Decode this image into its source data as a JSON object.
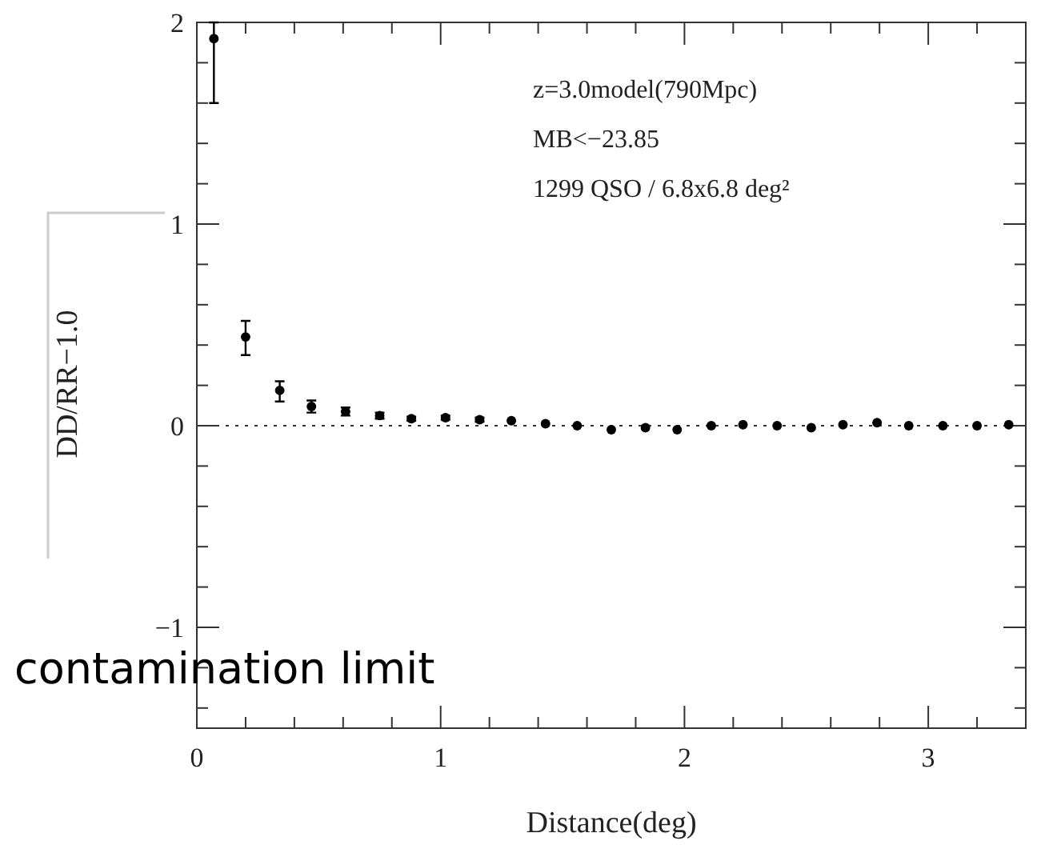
{
  "chart_data": {
    "type": "scatter",
    "xlabel": "Distance(deg)",
    "ylabel": "DD/RR−1.0",
    "x": [
      0.07,
      0.2,
      0.34,
      0.47,
      0.61,
      0.75,
      0.88,
      1.02,
      1.16,
      1.29,
      1.43,
      1.56,
      1.7,
      1.84,
      1.97,
      2.11,
      2.24,
      2.38,
      2.52,
      2.65,
      2.79,
      2.92,
      3.06,
      3.2,
      3.33
    ],
    "series": [
      {
        "color": "#000000",
        "values": [
          1.92,
          0.44,
          0.175,
          0.095,
          0.07,
          0.05,
          0.035,
          0.04,
          0.03,
          0.025,
          0.01,
          0.0,
          -0.02,
          -0.01,
          -0.02,
          0.0,
          0.005,
          0.0,
          -0.01,
          0.005,
          0.015,
          0.0,
          0.0,
          0.0,
          0.005
        ],
        "errors": [
          [
            1.6,
            2.0
          ],
          [
            0.35,
            0.52
          ],
          [
            0.12,
            0.22
          ],
          0.03,
          0.02,
          0.015,
          0.01,
          0.01,
          0.01,
          null,
          null,
          null,
          null,
          null,
          null,
          null,
          null,
          null,
          null,
          null,
          null,
          null,
          null,
          null,
          null
        ]
      }
    ],
    "xlim": [
      0,
      3.4
    ],
    "ylim": [
      -1.5,
      2
    ],
    "xticks": [
      0,
      {
        "value": 0.2,
        "label": null
      },
      {
        "value": 0.4,
        "label": null
      },
      {
        "value": 0.6,
        "label": null
      },
      {
        "value": 0.8,
        "label": null
      },
      1,
      {
        "value": 1.2,
        "label": null
      },
      {
        "value": 1.4,
        "label": null
      },
      {
        "value": 1.6,
        "label": null
      },
      {
        "value": 1.8,
        "label": null
      },
      2,
      {
        "value": 2.2,
        "label": null
      },
      {
        "value": 2.4,
        "label": null
      },
      {
        "value": 2.6,
        "label": null
      },
      {
        "value": 2.8,
        "label": null
      },
      3,
      {
        "value": 3.2,
        "label": null
      }
    ],
    "yticks": [
      {
        "value": -1.4,
        "label": null
      },
      {
        "value": -1.2,
        "label": null
      },
      {
        "value": -1,
        "label": "−1"
      },
      {
        "value": -0.8,
        "label": null
      },
      {
        "value": -0.6,
        "label": null
      },
      {
        "value": -0.4,
        "label": null
      },
      {
        "value": -0.2,
        "label": null
      },
      0,
      {
        "value": 0.2,
        "label": null
      },
      {
        "value": 0.4,
        "label": null
      },
      {
        "value": 0.6,
        "label": null
      },
      {
        "value": 0.8,
        "label": null
      },
      1,
      {
        "value": 1.2,
        "label": null
      },
      {
        "value": 1.4,
        "label": null
      },
      {
        "value": 1.6,
        "label": null
      },
      {
        "value": 1.8,
        "label": null
      },
      2
    ],
    "ref_lines": [
      {
        "axis": "y",
        "value": 0,
        "line_style": "dotted"
      }
    ],
    "marker": "circle",
    "annotations": [
      "z=3.0model(790Mpc)",
      "MB<−23.85",
      "1299 QSO / 6.8x6.8 deg²",
      "contamination limit"
    ]
  }
}
